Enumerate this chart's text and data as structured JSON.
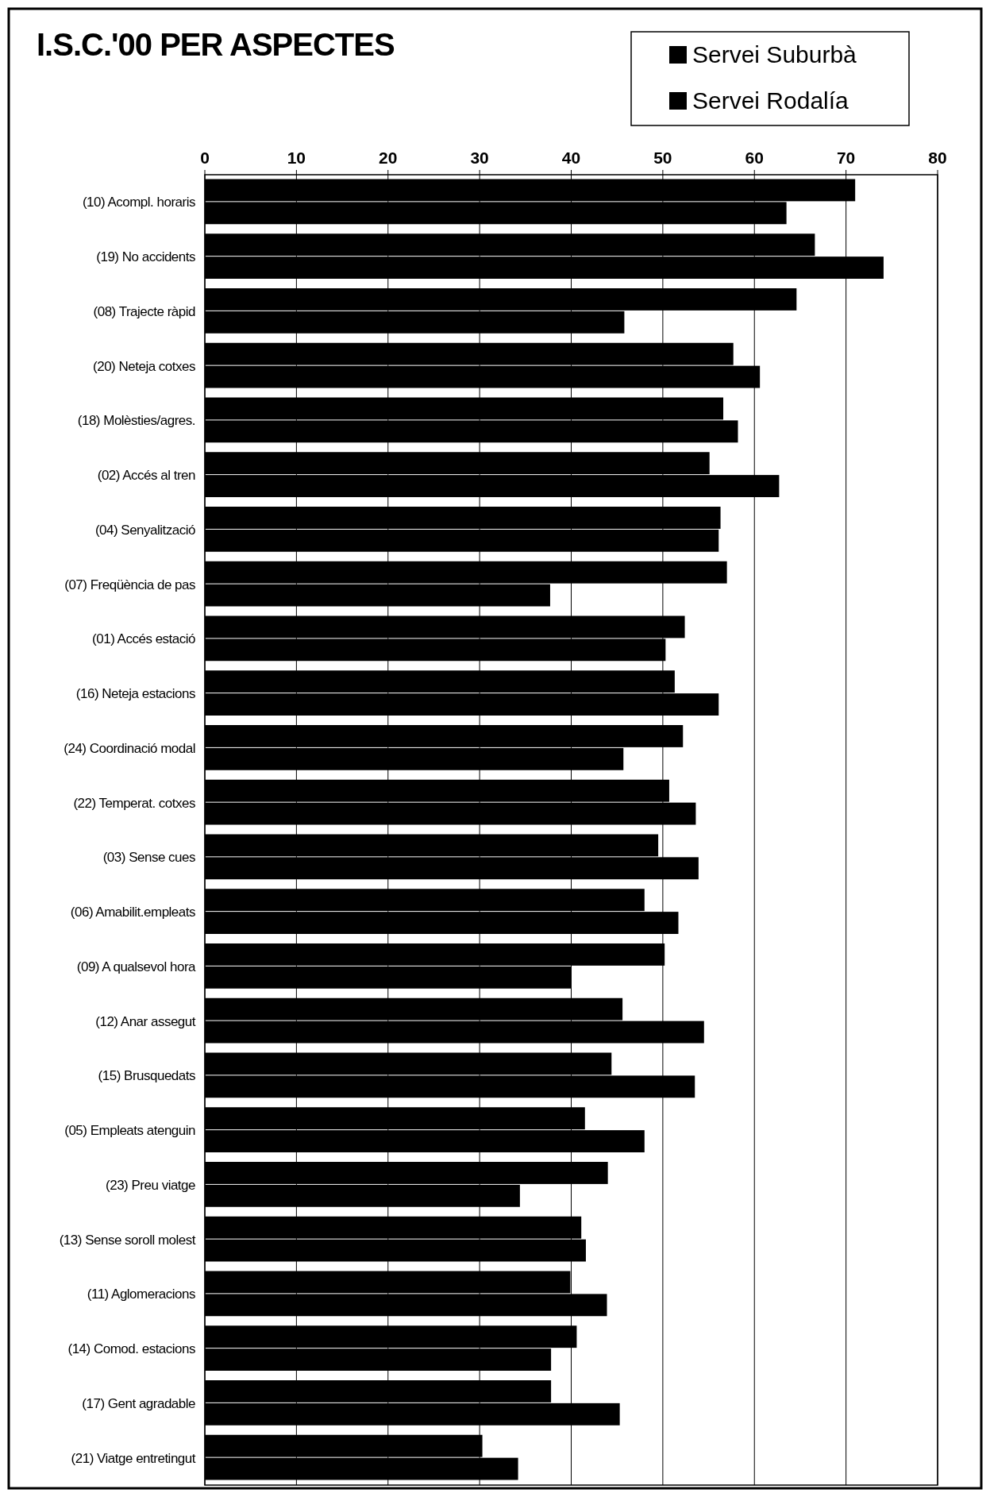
{
  "chart_data": {
    "type": "bar",
    "orientation": "horizontal",
    "title": "I.S.C.'00 PER ASPECTES",
    "categories": [
      "(10) Acompl. horaris",
      "(19) No accidents",
      "(08) Trajecte ràpid",
      "(20) Neteja cotxes",
      "(18) Molèsties/agres.",
      "(02) Accés al tren",
      "(04) Senyalització",
      "(07) Freqüència de pas",
      "(01) Accés estació",
      "(16) Neteja estacions",
      "(24) Coordinació modal",
      "(22) Temperat. cotxes",
      "(03) Sense cues",
      "(06) Amabilit.empleats",
      "(09) A qualsevol hora",
      "(12) Anar assegut",
      "(15) Brusquedats",
      "(05) Empleats atenguin",
      "(23) Preu viatge",
      "(13) Sense soroll molest",
      "(11) Aglomeracions",
      "(14) Comod. estacions",
      "(17) Gent agradable",
      "(21) Viatge entretingut"
    ],
    "series": [
      {
        "name": "Servei Suburbà",
        "color": "#000000",
        "values": [
          71.0,
          66.6,
          64.6,
          57.7,
          56.6,
          55.1,
          56.3,
          57.0,
          52.4,
          51.3,
          52.2,
          50.7,
          49.5,
          48.0,
          50.2,
          45.6,
          44.4,
          41.5,
          44.0,
          41.1,
          39.9,
          40.6,
          37.8,
          30.3
        ]
      },
      {
        "name": "Servei Rodalía",
        "color": "#000000",
        "values": [
          63.5,
          74.1,
          45.8,
          60.6,
          58.2,
          62.7,
          56.1,
          37.7,
          50.3,
          56.1,
          45.7,
          53.6,
          53.9,
          51.7,
          40.0,
          54.5,
          53.5,
          48.0,
          34.4,
          41.6,
          43.9,
          37.8,
          45.3,
          34.2
        ]
      }
    ],
    "xlim": [
      0,
      80
    ],
    "xticks": [
      0,
      10,
      20,
      30,
      40,
      50,
      60,
      70,
      80
    ],
    "grid": "x",
    "legend": "top right"
  }
}
